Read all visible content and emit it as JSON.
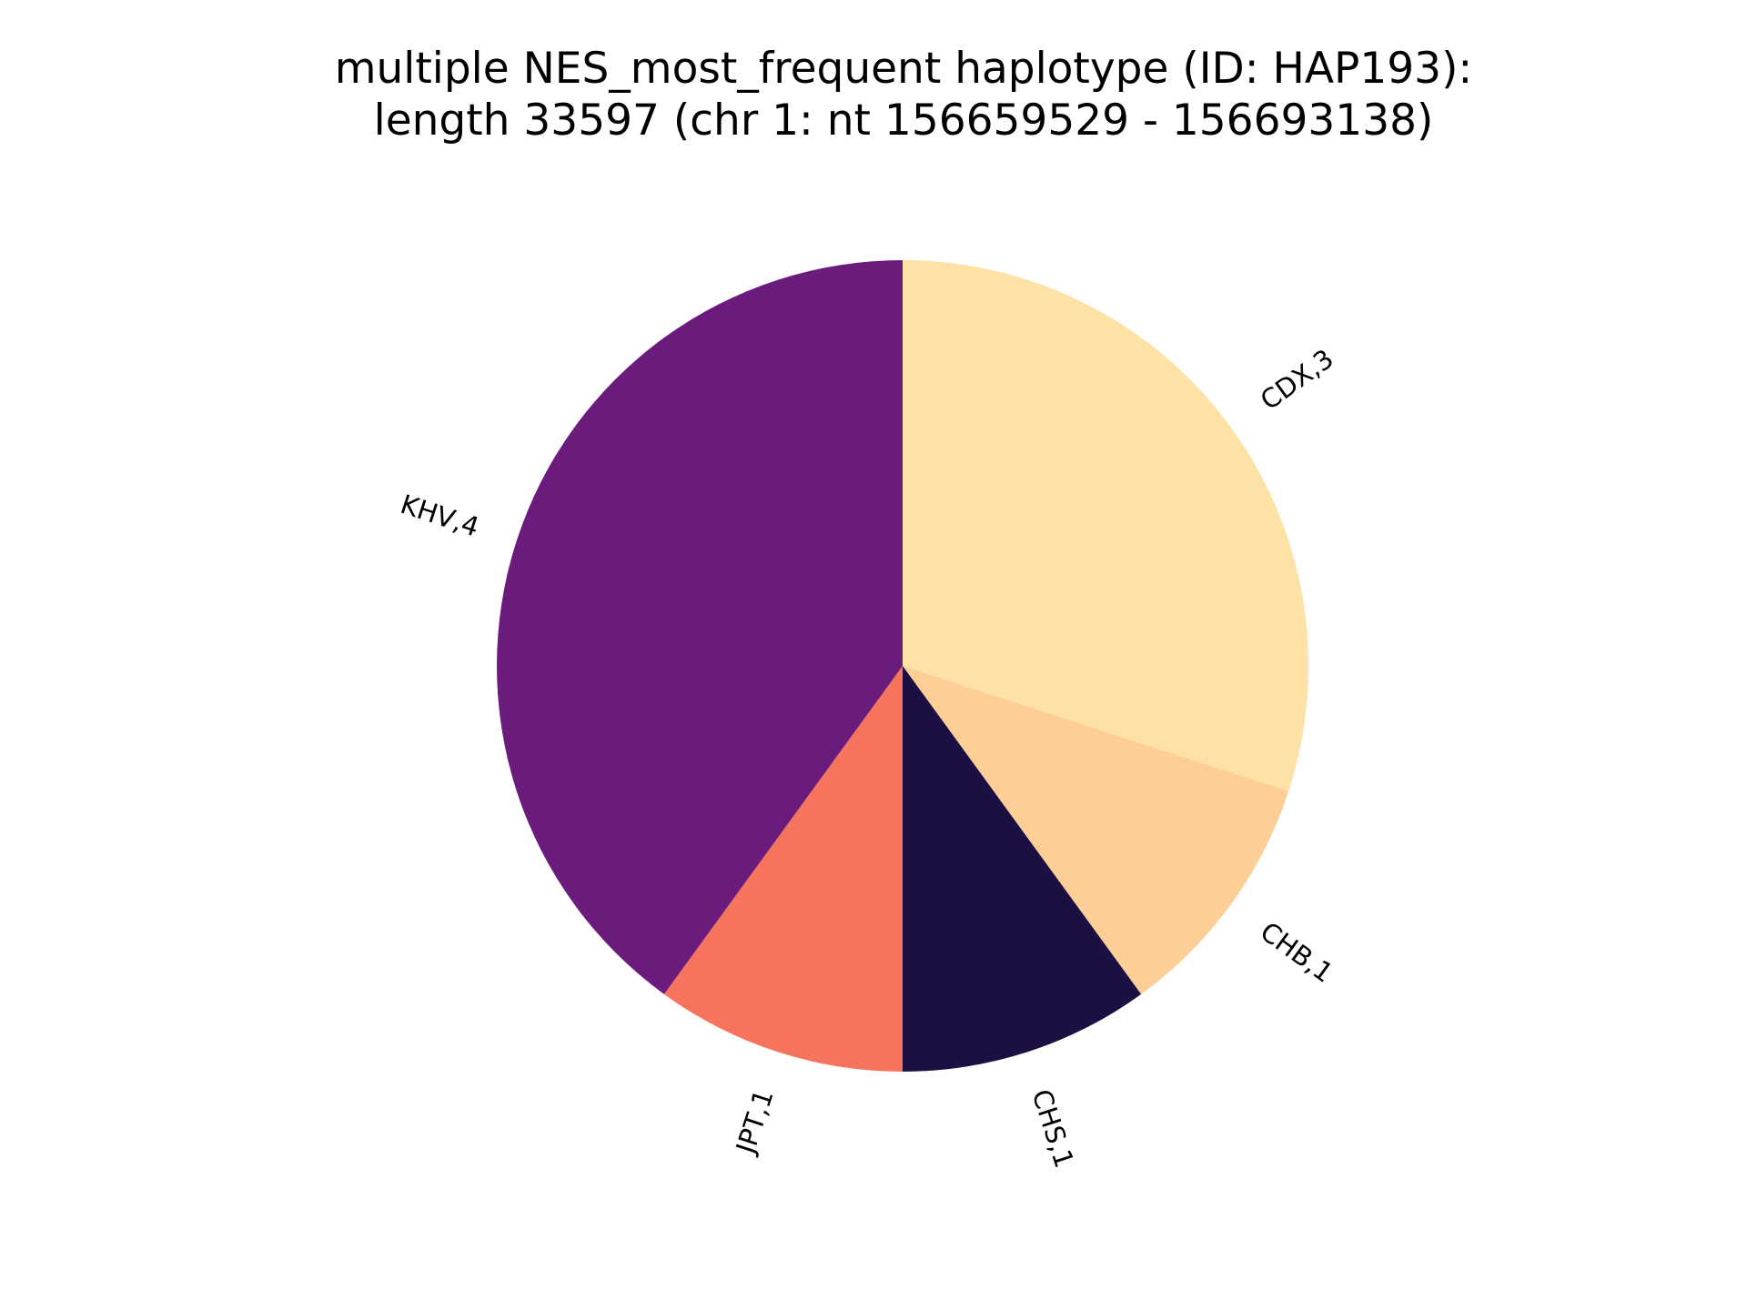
{
  "chart_data": {
    "type": "pie",
    "title": "multiple NES_most_frequent haplotype (ID: HAP193):",
    "subtitle": "length 33597 (chr 1: nt 156659529 - 156693138)",
    "start_angle_deg": 90,
    "direction": "clockwise",
    "slices": [
      {
        "category": "CDX",
        "value": 3,
        "label": "CDX,3",
        "color": "#FEE1A5"
      },
      {
        "category": "CHB",
        "value": 1,
        "label": "CHB,1",
        "color": "#FDCF96"
      },
      {
        "category": "CHS",
        "value": 1,
        "label": "CHS,1",
        "color": "#1C1042"
      },
      {
        "category": "JPT",
        "value": 1,
        "label": "JPT,1",
        "color": "#F6735E"
      },
      {
        "category": "KHV",
        "value": 4,
        "label": "KHV,4",
        "color": "#6A1B7C"
      }
    ]
  }
}
